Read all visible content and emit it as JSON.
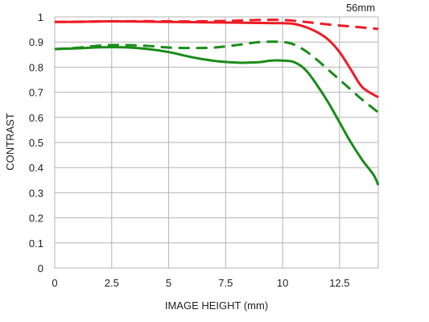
{
  "chart_data": {
    "type": "line",
    "title": "56mm",
    "xlabel": "IMAGE HEIGHT (mm)",
    "ylabel": "CONTRAST",
    "xlim": [
      0,
      14.2
    ],
    "ylim": [
      0,
      1
    ],
    "x_ticks": [
      "0",
      "2.5",
      "5",
      "7.5",
      "10",
      "12.5"
    ],
    "y_ticks": [
      "0",
      "0.1",
      "0.2",
      "0.3",
      "0.4",
      "0.5",
      "0.6",
      "0.7",
      "0.8",
      "0.9",
      "1"
    ],
    "grid": true,
    "legend": "none",
    "series": [
      {
        "color": "#ee1c25",
        "style": "solid",
        "points": [
          [
            0,
            0.98
          ],
          [
            1,
            0.98
          ],
          [
            2,
            0.982
          ],
          [
            3,
            0.982
          ],
          [
            4,
            0.981
          ],
          [
            5,
            0.98
          ],
          [
            6,
            0.979
          ],
          [
            7,
            0.978
          ],
          [
            8,
            0.977
          ],
          [
            9,
            0.976
          ],
          [
            10,
            0.975
          ],
          [
            10.5,
            0.972
          ],
          [
            11,
            0.96
          ],
          [
            11.5,
            0.94
          ],
          [
            12,
            0.91
          ],
          [
            12.5,
            0.86
          ],
          [
            13,
            0.79
          ],
          [
            13.5,
            0.72
          ],
          [
            14.2,
            0.68
          ]
        ]
      },
      {
        "color": "#ee1c25",
        "style": "dashed",
        "points": [
          [
            0,
            0.98
          ],
          [
            2,
            0.982
          ],
          [
            4,
            0.983
          ],
          [
            6,
            0.982
          ],
          [
            8,
            0.985
          ],
          [
            9,
            0.988
          ],
          [
            10,
            0.988
          ],
          [
            11,
            0.98
          ],
          [
            12,
            0.97
          ],
          [
            13,
            0.962
          ],
          [
            14.2,
            0.952
          ]
        ]
      },
      {
        "color": "#1a8c1a",
        "style": "solid",
        "points": [
          [
            0,
            0.872
          ],
          [
            1,
            0.875
          ],
          [
            2,
            0.879
          ],
          [
            3,
            0.879
          ],
          [
            4,
            0.873
          ],
          [
            5,
            0.86
          ],
          [
            6,
            0.84
          ],
          [
            7,
            0.825
          ],
          [
            8,
            0.818
          ],
          [
            8.5,
            0.818
          ],
          [
            9,
            0.82
          ],
          [
            9.5,
            0.826
          ],
          [
            10,
            0.826
          ],
          [
            10.5,
            0.82
          ],
          [
            11,
            0.79
          ],
          [
            11.5,
            0.73
          ],
          [
            12,
            0.66
          ],
          [
            12.5,
            0.58
          ],
          [
            13,
            0.5
          ],
          [
            13.5,
            0.43
          ],
          [
            14,
            0.37
          ],
          [
            14.2,
            0.33
          ]
        ]
      },
      {
        "color": "#1a8c1a",
        "style": "dashed",
        "points": [
          [
            0,
            0.872
          ],
          [
            1,
            0.877
          ],
          [
            2,
            0.886
          ],
          [
            3,
            0.888
          ],
          [
            4,
            0.885
          ],
          [
            5,
            0.878
          ],
          [
            6,
            0.876
          ],
          [
            7,
            0.878
          ],
          [
            8,
            0.888
          ],
          [
            9,
            0.9
          ],
          [
            10,
            0.9
          ],
          [
            10.5,
            0.89
          ],
          [
            11,
            0.865
          ],
          [
            11.5,
            0.83
          ],
          [
            12,
            0.79
          ],
          [
            12.5,
            0.75
          ],
          [
            13,
            0.71
          ],
          [
            13.5,
            0.67
          ],
          [
            14.2,
            0.62
          ]
        ]
      }
    ]
  }
}
